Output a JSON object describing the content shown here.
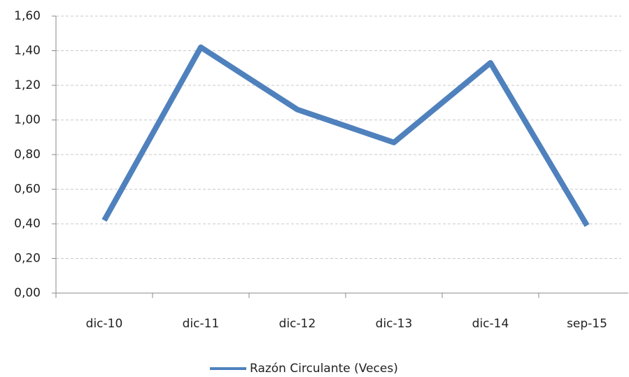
{
  "chart_data": {
    "type": "line",
    "categories": [
      "dic-10",
      "dic-11",
      "dic-12",
      "dic-13",
      "dic-14",
      "sep-15"
    ],
    "series": [
      {
        "name": "Razón Circulante (Veces)",
        "color": "#4f81bd",
        "values": [
          0.42,
          1.42,
          1.06,
          0.87,
          1.33,
          0.39
        ]
      }
    ],
    "ylim": [
      0,
      1.6
    ],
    "yticks": [
      {
        "value": 0,
        "label": "0,00"
      },
      {
        "value": 0.2,
        "label": "0,20"
      },
      {
        "value": 0.4,
        "label": "0,40"
      },
      {
        "value": 0.6,
        "label": "0,60"
      },
      {
        "value": 0.8,
        "label": "0,80"
      },
      {
        "value": 1.0,
        "label": "1,00"
      },
      {
        "value": 1.2,
        "label": "1,20"
      },
      {
        "value": 1.4,
        "label": "1,40"
      },
      {
        "value": 1.6,
        "label": "1,60"
      }
    ],
    "grid": true,
    "legend": "bottom"
  }
}
